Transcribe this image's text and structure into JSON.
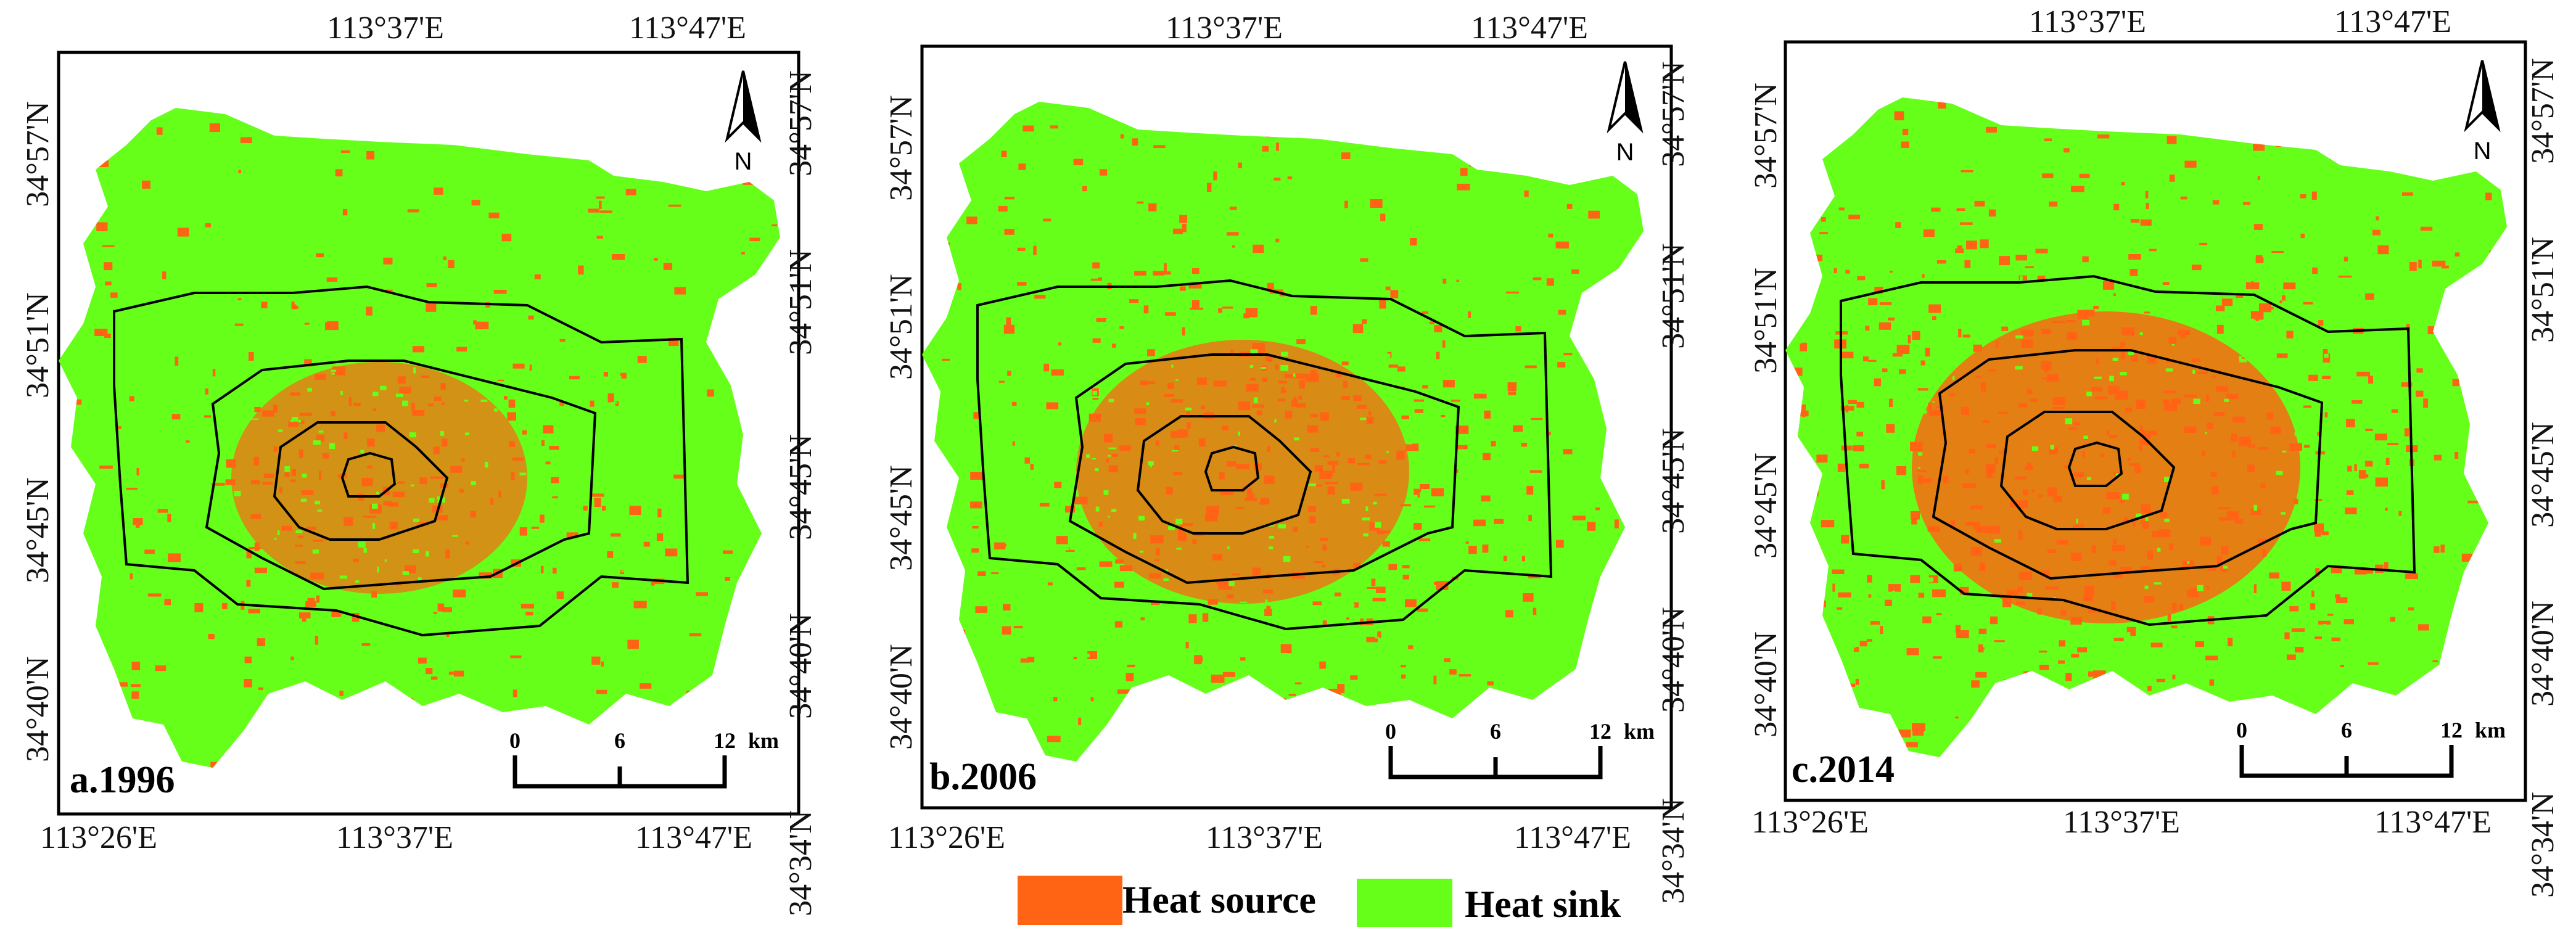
{
  "colors": {
    "heat_source": "#ff6414",
    "heat_sink": "#66ff1a",
    "frame": "#000000",
    "ring_line": "#000000"
  },
  "panels": [
    {
      "label": "a.1996",
      "year": "1996",
      "heat_source_share": 0.3,
      "top_lon": [
        "113°37'E",
        "113°47'E"
      ],
      "bottom_lon": [
        "113°26'E",
        "113°37'E",
        "113°47'E"
      ],
      "left_lat": [
        "34°57'N",
        "34°51'N",
        "34°45'N",
        "34°40'N"
      ],
      "right_lat": [
        "34°57'N",
        "34°51'N",
        "34°45'N",
        "34°40'N",
        "34°34'N"
      ],
      "scale_labels": [
        "0",
        "6",
        "12"
      ],
      "scale_unit": "km",
      "north_label": "N"
    },
    {
      "label": "b.2006",
      "year": "2006",
      "heat_source_share": 0.4,
      "top_lon": [
        "113°37'E",
        "113°47'E"
      ],
      "bottom_lon": [
        "113°26'E",
        "113°37'E",
        "113°47'E"
      ],
      "left_lat": [
        "34°57'N",
        "34°51'N",
        "34°45'N",
        "34°40'N"
      ],
      "right_lat": [
        "34°57'N",
        "34°51'N",
        "34°45'N",
        "34°40'N",
        "34°34'N"
      ],
      "scale_labels": [
        "0",
        "6",
        "12"
      ],
      "scale_unit": "km",
      "north_label": "N"
    },
    {
      "label": "c.2014",
      "year": "2014",
      "heat_source_share": 0.55,
      "top_lon": [
        "113°37'E",
        "113°47'E"
      ],
      "bottom_lon": [
        "113°26'E",
        "113°37'E",
        "113°47'E"
      ],
      "left_lat": [
        "34°57'N",
        "34°51'N",
        "34°45'N",
        "34°40'N"
      ],
      "right_lat": [
        "34°57'N",
        "34°51'N",
        "34°45'N",
        "34°40'N",
        "34°34'N"
      ],
      "scale_labels": [
        "0",
        "6",
        "12"
      ],
      "scale_unit": "km",
      "north_label": "N"
    }
  ],
  "legend": [
    {
      "label": "Heat source",
      "color": "#ff6414"
    },
    {
      "label": "Heat sink",
      "color": "#66ff1a"
    }
  ]
}
